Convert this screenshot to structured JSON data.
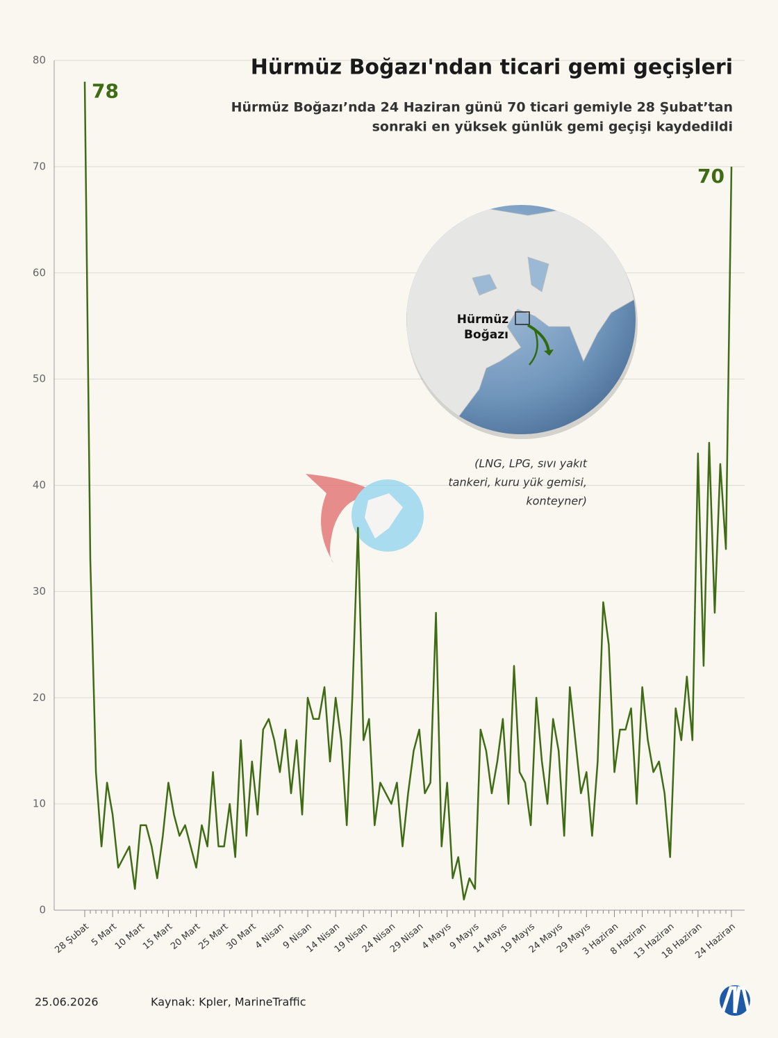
{
  "chart_data": {
    "type": "line",
    "title": "Hürmüz Boğazı'ndan ticari gemi geçişleri",
    "subtitle": [
      "Hürmüz Boğazı’nda 24 Haziran günü 70 ticari gemiyle 28 Şubat’tan",
      "sonraki en yüksek günlük gemi geçişi kaydedildi"
    ],
    "categories": [
      "28 Şubat",
      null,
      null,
      null,
      null,
      "5 Mart",
      null,
      null,
      null,
      null,
      "10 Mart",
      null,
      null,
      null,
      null,
      "15 Mart",
      null,
      null,
      null,
      null,
      "20 Mart",
      null,
      null,
      null,
      null,
      "25 Mart",
      null,
      null,
      null,
      null,
      "30 Mart",
      null,
      null,
      null,
      null,
      "4 Nisan",
      null,
      null,
      null,
      null,
      "9 Nisan",
      null,
      null,
      null,
      null,
      "14 Nisan",
      null,
      null,
      null,
      null,
      "19 Nisan",
      null,
      null,
      null,
      null,
      "24 Nisan",
      null,
      null,
      null,
      null,
      "29 Nisan",
      null,
      null,
      null,
      null,
      "4 Mayıs",
      null,
      null,
      null,
      null,
      "9 Mayıs",
      null,
      null,
      null,
      null,
      "14 Mayıs",
      null,
      null,
      null,
      null,
      "19 Mayıs",
      null,
      null,
      null,
      null,
      "24 Mayıs",
      null,
      null,
      null,
      null,
      "29 Mayıs",
      null,
      null,
      null,
      null,
      "3 Haziran",
      null,
      null,
      null,
      null,
      "8 Haziran",
      null,
      null,
      null,
      null,
      "13 Haziran",
      null,
      null,
      null,
      null,
      "18 Haziran",
      null,
      null,
      null,
      null,
      null,
      "24 Haziran"
    ],
    "values": [
      78,
      33,
      13,
      6,
      12,
      9,
      4,
      5,
      6,
      2,
      8,
      8,
      6,
      3,
      7,
      12,
      9,
      7,
      8,
      6,
      4,
      8,
      6,
      13,
      6,
      6,
      10,
      5,
      16,
      7,
      14,
      9,
      17,
      18,
      16,
      13,
      17,
      11,
      16,
      9,
      20,
      18,
      18,
      21,
      14,
      20,
      16,
      8,
      20,
      36,
      16,
      18,
      8,
      12,
      11,
      10,
      12,
      6,
      11,
      15,
      17,
      11,
      12,
      28,
      6,
      12,
      3,
      5,
      1,
      3,
      2,
      17,
      15,
      11,
      14,
      18,
      10,
      23,
      13,
      12,
      8,
      20,
      14,
      10,
      18,
      15,
      7,
      21,
      16,
      11,
      13,
      7,
      14,
      29,
      25,
      13,
      17,
      17,
      19,
      10,
      21,
      16,
      13,
      14,
      11,
      5,
      19,
      16,
      22,
      16,
      43,
      23,
      44,
      28,
      42,
      34,
      70
    ],
    "color": "#3e6b14",
    "ylim": [
      0,
      80
    ],
    "yticks": [
      0,
      10,
      20,
      30,
      40,
      50,
      60,
      70,
      80
    ],
    "grid": true,
    "highlight": [
      0,
      116
    ]
  },
  "map": {
    "label": [
      "Hürmüz",
      "Boğazı"
    ],
    "note": [
      "(LNG, LPG, sıvı yakıt",
      "tankeri, kuru yük gemisi,",
      "konteyner)"
    ]
  },
  "footer": {
    "date": "25.06.2026",
    "source": "Kaynak: Kpler, MarineTraffic"
  }
}
